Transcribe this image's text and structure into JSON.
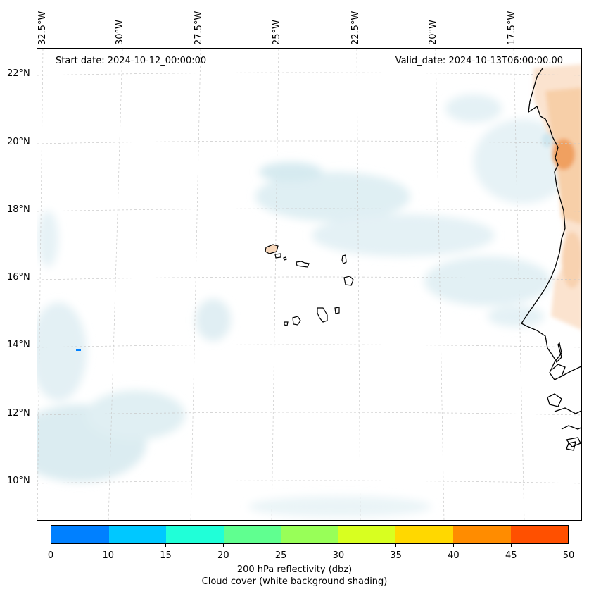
{
  "map": {
    "start_date": "Start date: 2024-10-12_00:00:00",
    "valid_date": "Valid_date: 2024-10-13T06:00:00.00",
    "longitude_labels": [
      "32.5°W",
      "30°W",
      "27.5°W",
      "25°W",
      "22.5°W",
      "20°W",
      "17.5°W"
    ],
    "latitude_labels": [
      "22°N",
      "20°N",
      "18°N",
      "16°N",
      "14°N",
      "12°N",
      "10°N"
    ],
    "gridlines": true,
    "region": "Cape Verde islands and West African coast"
  },
  "colorbar": {
    "ticks": [
      "0",
      "10",
      "15",
      "20",
      "25",
      "30",
      "35",
      "40",
      "45",
      "50"
    ],
    "colors": [
      "#0080ff",
      "#00c8ff",
      "#20ffd8",
      "#60ff90",
      "#98ff58",
      "#d8ff20",
      "#ffd800",
      "#ff8c00",
      "#ff5000"
    ],
    "label_line1": "200 hPa reflectivity (dbz)",
    "label_line2": "Cloud cover (white background shading)"
  }
}
